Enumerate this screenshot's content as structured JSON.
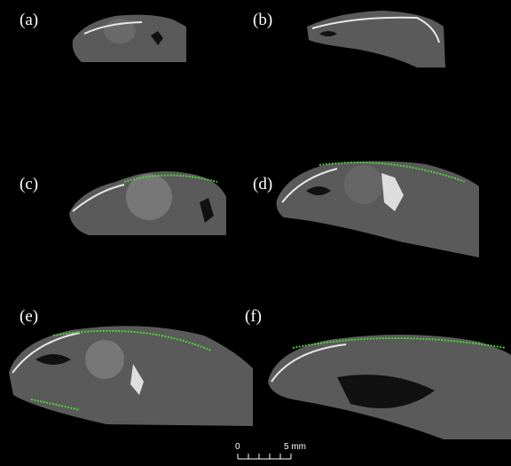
{
  "panels": [
    {
      "label": "(a)"
    },
    {
      "label": "(b)"
    },
    {
      "label": "(c)"
    },
    {
      "label": "(d)"
    },
    {
      "label": "(e)"
    },
    {
      "label": "(f)"
    }
  ],
  "scale_bar": {
    "start": "0",
    "end": "5 mm"
  }
}
